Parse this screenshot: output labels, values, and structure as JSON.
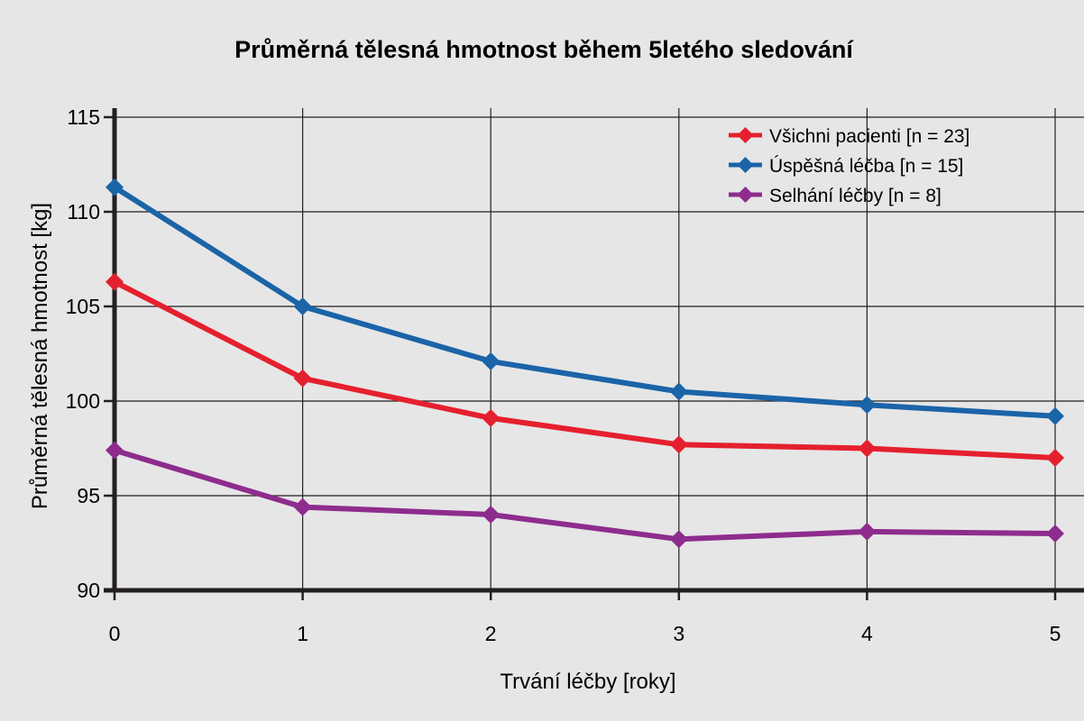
{
  "chart_data": {
    "type": "line",
    "title": "Průměrná tělesná hmotnost během 5letého sledování",
    "xlabel": "Trvání léčby [roky]",
    "ylabel": "Průměrná tělesná hmotnost [kg]",
    "x": [
      0,
      1,
      2,
      3,
      4,
      5
    ],
    "x_tick_labels": [
      "0",
      "1",
      "2",
      "3",
      "4",
      "5"
    ],
    "y_ticks": [
      90,
      95,
      100,
      105,
      110,
      115
    ],
    "y_tick_labels": [
      "90",
      "95",
      "100",
      "105",
      "110",
      "115"
    ],
    "xlim": [
      0,
      5
    ],
    "ylim": [
      90,
      115
    ],
    "grid": true,
    "legend_position": "top-right",
    "series": [
      {
        "name": "Všichni pacienti [n = 23]",
        "color": "#e5202e",
        "values": [
          106.3,
          101.2,
          99.1,
          97.7,
          97.5,
          97.0
        ]
      },
      {
        "name": "Úspěšná léčba [n = 15]",
        "color": "#1b64a8",
        "values": [
          111.3,
          105.0,
          102.1,
          100.5,
          99.8,
          99.2
        ]
      },
      {
        "name": "Selhání léčby [n = 8]",
        "color": "#8e2c8e",
        "values": [
          97.4,
          94.4,
          94.0,
          92.7,
          93.1,
          93.0
        ]
      }
    ]
  }
}
